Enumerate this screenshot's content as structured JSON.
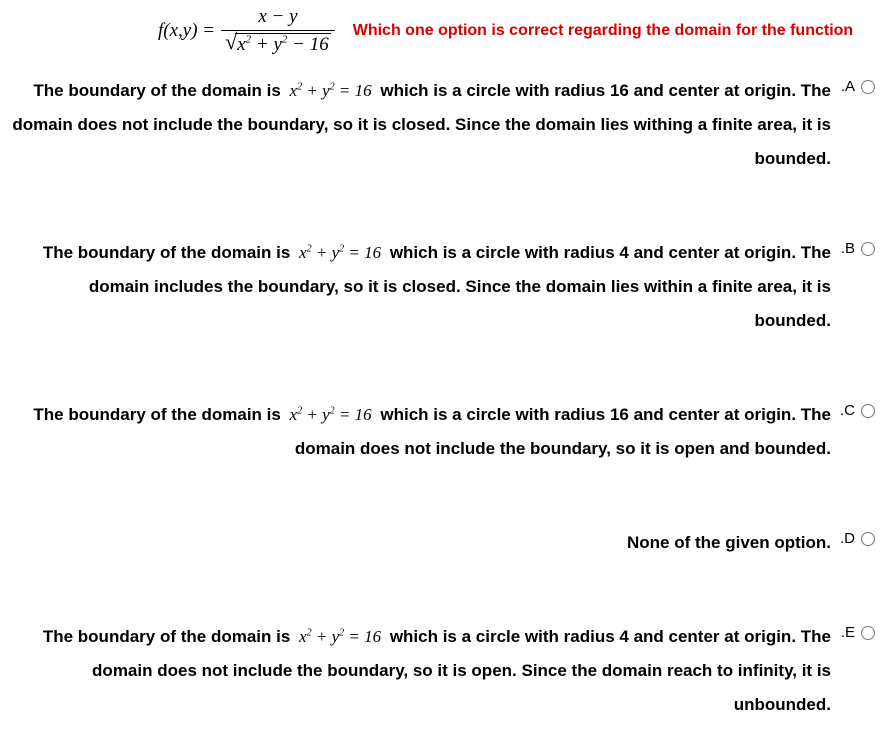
{
  "colors": {
    "prompt": "#d90000",
    "text": "#000000",
    "radio_border": "#777777",
    "background": "#ffffff"
  },
  "formula": {
    "lhs": "f(x,y) =",
    "numerator": "x − y",
    "radicand_a": "x",
    "radicand_b": "y",
    "radicand_tail": " − 16"
  },
  "prompt": "Which one option is correct regarding the domain for the function",
  "eq_parts": {
    "x": "x",
    "y": "y",
    "mid": " + ",
    "rhs": " = 16"
  },
  "options": {
    "A": {
      "letter": ".A",
      "pre": "The boundary of the domain is  ",
      "post": "  which is a circle with radius 16 and center at origin. The domain does not include the boundary, so it is closed. Since the domain lies withing a finite area, it is bounded."
    },
    "B": {
      "letter": ".B",
      "pre": "The boundary of the domain is  ",
      "post": "   which is a circle with radius 4 and center at origin. The domain includes the boundary, so it is closed. Since the domain lies within a finite area, it is bounded."
    },
    "C": {
      "letter": ".C",
      "pre": "The boundary of the domain is  ",
      "post": "  which is a circle with radius 16 and center at origin. The domain does not include the boundary, so it is open and bounded."
    },
    "D": {
      "letter": ".D",
      "text": "None of the given option."
    },
    "E": {
      "letter": ".E",
      "pre": "The boundary of the domain is  ",
      "post": "   which is a circle with radius 4 and center at origin. The domain does not include the boundary, so it is open. Since the domain reach to infinity, it is unbounded."
    }
  }
}
